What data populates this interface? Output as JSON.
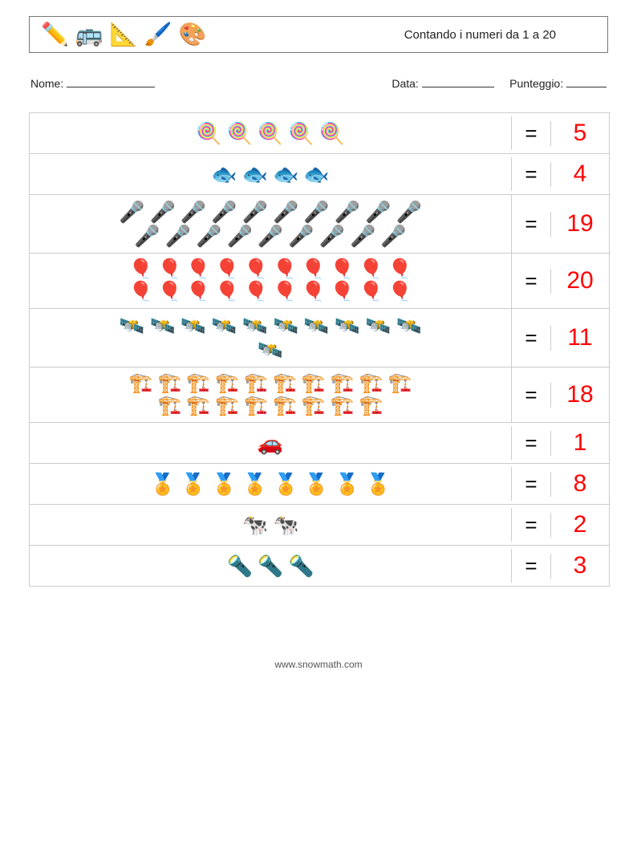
{
  "header": {
    "icons": [
      "✏️",
      "🚌",
      "📐",
      "🖌️",
      "🎨"
    ],
    "title": "Contando i numeri da 1 a 20"
  },
  "info": {
    "name_label": "Nome:",
    "name_line_width": 110,
    "date_label": "Data:",
    "date_line_width": 90,
    "score_label": "Punteggio:",
    "score_line_width": 50
  },
  "answer_color": "#ff0000",
  "eq_symbol": "=",
  "rows": [
    {
      "emoji": "🍭",
      "count": 5,
      "per_line": 10,
      "answer": "5",
      "size": 26
    },
    {
      "emoji": "🐟",
      "count": 4,
      "per_line": 10,
      "answer": "4",
      "size": 26
    },
    {
      "emoji": "🎤",
      "count": 19,
      "per_line": 10,
      "answer": "19",
      "size": 26
    },
    {
      "emoji": "🎈",
      "count": 20,
      "per_line": 10,
      "answer": "20",
      "size": 24
    },
    {
      "emoji": "🛰️",
      "count": 11,
      "per_line": 10,
      "answer": "11",
      "size": 26
    },
    {
      "emoji": "🏗️",
      "count": 18,
      "per_line": 10,
      "answer": "18",
      "size": 24
    },
    {
      "emoji": "🚗",
      "count": 1,
      "per_line": 10,
      "answer": "1",
      "size": 26
    },
    {
      "emoji": "🏅",
      "count": 8,
      "per_line": 10,
      "answer": "8",
      "size": 26
    },
    {
      "emoji": "🐄",
      "count": 2,
      "per_line": 10,
      "answer": "2",
      "size": 26
    },
    {
      "emoji": "🔦",
      "count": 3,
      "per_line": 10,
      "answer": "3",
      "size": 26
    }
  ],
  "footer": "www.snowmath.com"
}
